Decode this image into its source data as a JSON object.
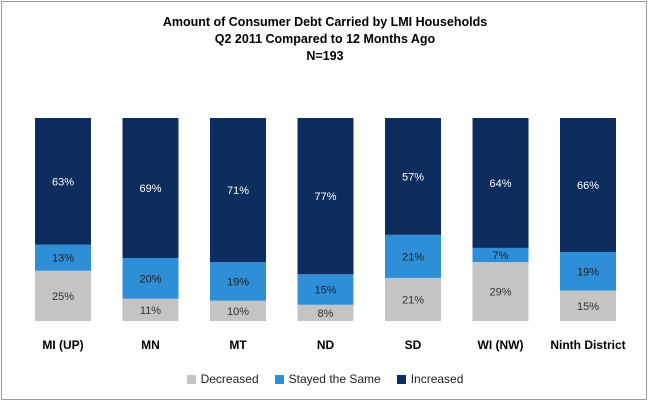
{
  "chart_data": {
    "type": "bar",
    "stacked": true,
    "percent": true,
    "title": "Amount of Consumer Debt Carried by LMI Households",
    "subtitle": "Q2 2011 Compared to 12 Months Ago",
    "sample": "N=193",
    "categories": [
      "MI (UP)",
      "MN",
      "MT",
      "ND",
      "SD",
      "WI (NW)",
      "Ninth District"
    ],
    "series": [
      {
        "name": "Decreased",
        "color": "#c4c4c4",
        "values": [
          25,
          11,
          10,
          8,
          21,
          29,
          15
        ]
      },
      {
        "name": "Stayed the Same",
        "color": "#2e8fd8",
        "values": [
          13,
          20,
          19,
          15,
          21,
          7,
          19
        ]
      },
      {
        "name": "Increased",
        "color": "#0d2d5e",
        "values": [
          63,
          69,
          71,
          77,
          57,
          64,
          66
        ]
      }
    ],
    "data_labels": [
      [
        "25%",
        "11%",
        "10%",
        "8%",
        "21%",
        "29%",
        "15%"
      ],
      [
        "13%",
        "20%",
        "19%",
        "15%",
        "21%",
        "7%",
        "19%"
      ],
      [
        "63%",
        "69%",
        "71%",
        "77%",
        "57%",
        "64%",
        "66%"
      ]
    ],
    "label_colors": [
      "#333333",
      "#222222",
      "#ffffff"
    ],
    "ylim": [
      0,
      100
    ],
    "grid": false,
    "legend_position": "bottom"
  }
}
